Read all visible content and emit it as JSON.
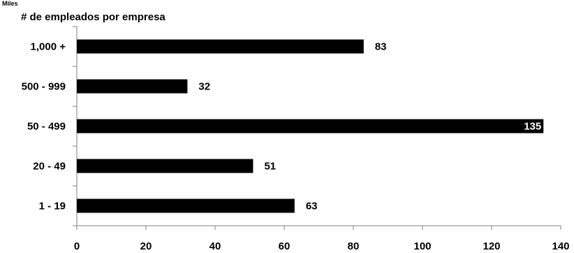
{
  "top_note": "Miles",
  "chart_data": {
    "type": "bar",
    "orientation": "horizontal",
    "title": "# de empleados por empresa",
    "xlabel": "",
    "ylabel": "",
    "categories": [
      "1,000 +",
      "500 - 999",
      "50 - 499",
      "20 - 49",
      "1 - 19"
    ],
    "values": [
      83,
      32,
      135,
      51,
      63
    ],
    "value_labels": [
      "83",
      "32",
      "135",
      "51",
      "63"
    ],
    "xlim": [
      0,
      140
    ],
    "xticks": [
      0,
      20,
      40,
      60,
      80,
      100,
      120,
      140
    ],
    "xtick_labels": [
      "0",
      "20",
      "40",
      "60",
      "80",
      "100",
      "120",
      "140"
    ],
    "grid": false,
    "bar_color": "#000000",
    "label_inside_color": "#ffffff"
  }
}
